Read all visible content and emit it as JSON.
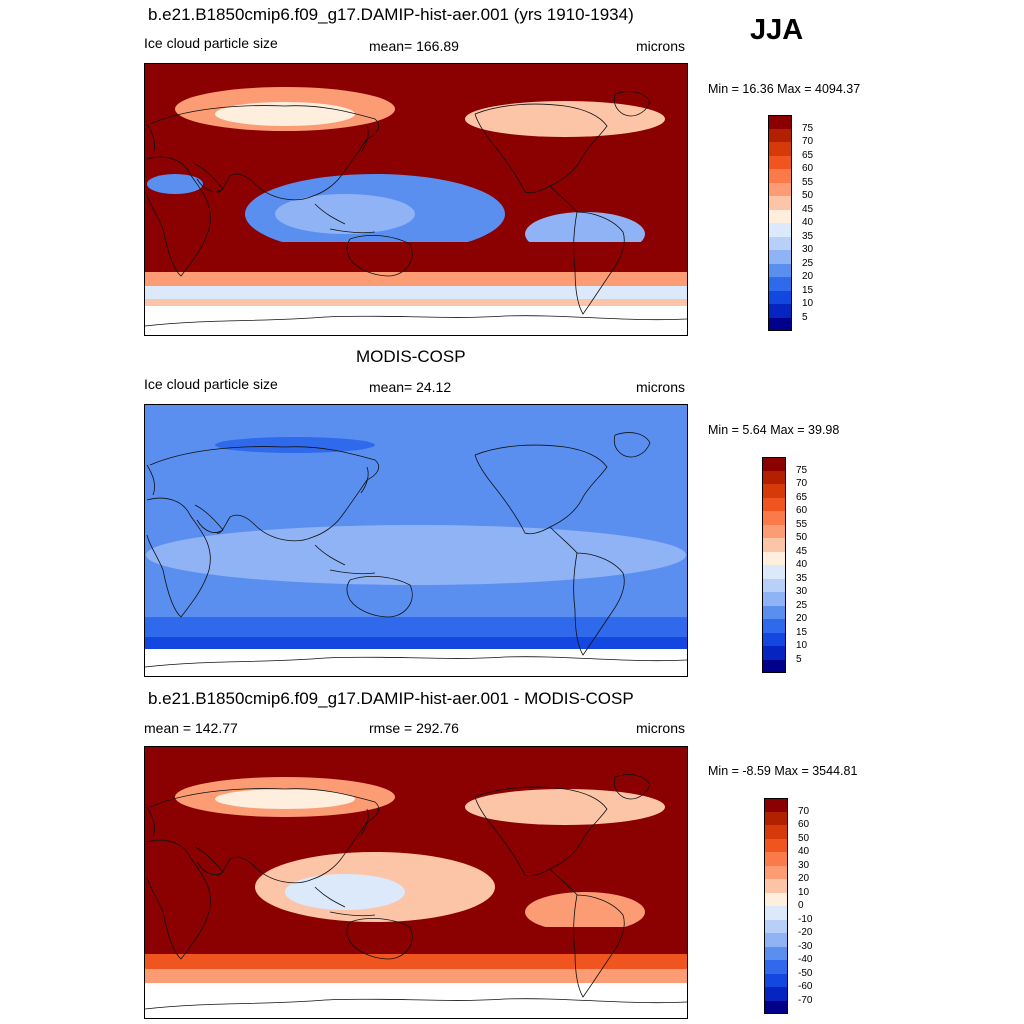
{
  "season": "JJA",
  "panels": [
    {
      "title": "b.e21.B1850cmip6.f09_g17.DAMIP-hist-aer.001 (yrs 1910-1934)",
      "left_label": "Ice cloud particle size",
      "center_label": "mean= 166.89",
      "right_label": "microns",
      "minmax": "Min =  16.36 Max = 4094.37",
      "field": "model",
      "colorbar_labels": [
        "75",
        "70",
        "65",
        "60",
        "55",
        "50",
        "45",
        "40",
        "35",
        "30",
        "25",
        "20",
        "15",
        "10",
        "5"
      ]
    },
    {
      "title": "MODIS-COSP",
      "left_label": "Ice cloud particle size",
      "center_label": "mean=  24.12",
      "right_label": "microns",
      "minmax": "Min =   5.64 Max =  39.98",
      "field": "obs",
      "colorbar_labels": [
        "75",
        "70",
        "65",
        "60",
        "55",
        "50",
        "45",
        "40",
        "35",
        "30",
        "25",
        "20",
        "15",
        "10",
        "5"
      ]
    },
    {
      "title": "b.e21.B1850cmip6.f09_g17.DAMIP-hist-aer.001 - MODIS-COSP",
      "left_label": "mean = 142.77",
      "center_label": "rmse = 292.76",
      "right_label": "microns",
      "minmax": "Min =  -8.59 Max = 3544.81",
      "field": "diff",
      "colorbar_labels": [
        "70",
        "60",
        "50",
        "40",
        "30",
        "20",
        "10",
        "0",
        "-10",
        "-20",
        "-30",
        "-40",
        "-50",
        "-60",
        "-70"
      ]
    }
  ],
  "colors": {
    "palette": [
      "#8b0000",
      "#b22000",
      "#d63a0a",
      "#f0551f",
      "#fa7a4a",
      "#fc9c75",
      "#fdc5a8",
      "#fdeedd",
      "#dbe9fb",
      "#b8d0f8",
      "#8fb3f5",
      "#5a8ff0",
      "#2f6aec",
      "#1446e0",
      "#0524c0",
      "#00008b"
    ],
    "land_line": "#111111",
    "missing": "#ffffff"
  }
}
